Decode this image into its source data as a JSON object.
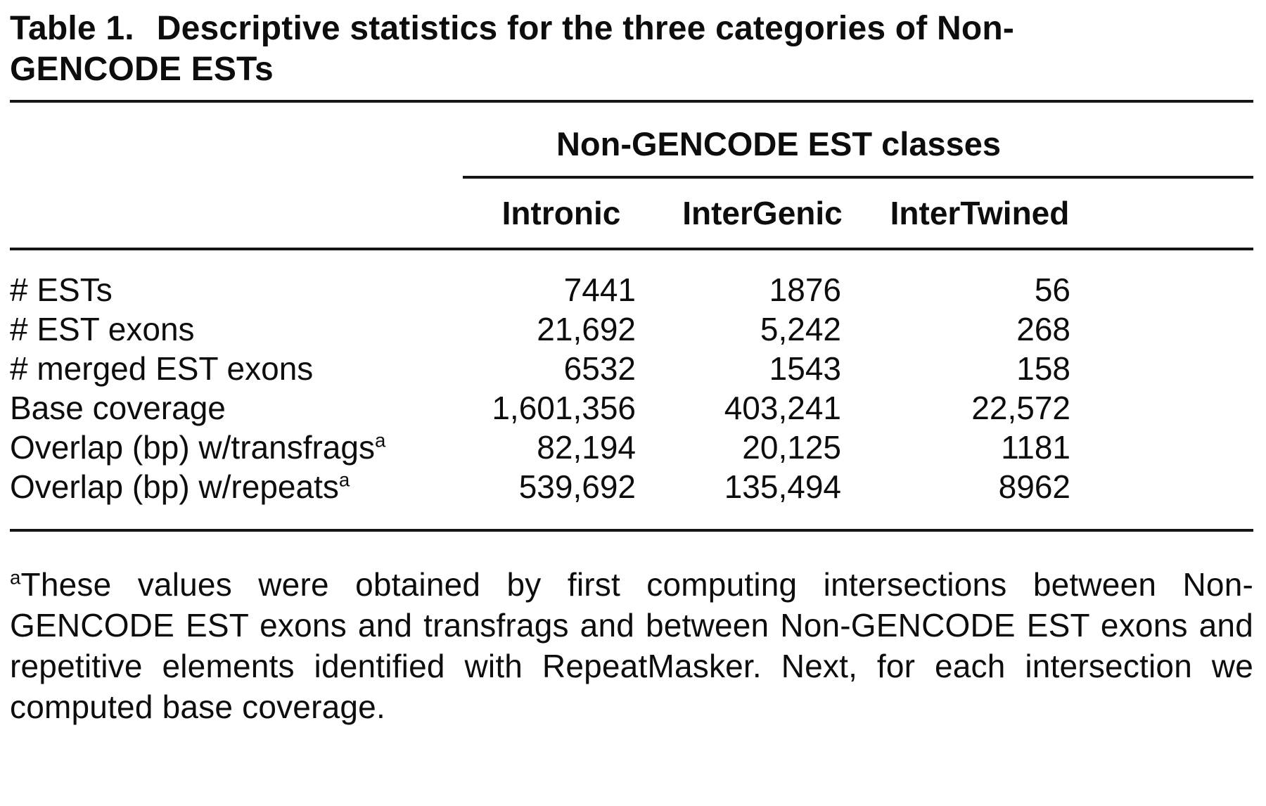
{
  "caption": {
    "number": "Table 1.",
    "text": "Descriptive statistics for the three categories of Non-GENCODE ESTs"
  },
  "table": {
    "spanner": "Non-GENCODE EST classes",
    "columns": [
      "Intronic",
      "InterGenic",
      "InterTwined"
    ],
    "rows": [
      {
        "label": "# ESTs",
        "sup": "",
        "values": [
          "7441",
          "1876",
          "56"
        ]
      },
      {
        "label": "# EST exons",
        "sup": "",
        "values": [
          "21,692",
          "5,242",
          "268"
        ]
      },
      {
        "label": "# merged EST exons",
        "sup": "",
        "values": [
          "6532",
          "1543",
          "158"
        ]
      },
      {
        "label": "Base coverage",
        "sup": "",
        "values": [
          "1,601,356",
          "403,241",
          "22,572"
        ]
      },
      {
        "label": "Overlap (bp) w/transfrags",
        "sup": "a",
        "values": [
          "82,194",
          "20,125",
          "1181"
        ]
      },
      {
        "label": "Overlap (bp) w/repeats",
        "sup": "a",
        "values": [
          "539,692",
          "135,494",
          "8962"
        ]
      }
    ]
  },
  "footnote": {
    "marker": "a",
    "text": "These values were obtained by first computing intersections between Non-GENCODE EST exons and transfrags and between Non-GENCODE EST exons and repetitive elements identified with RepeatMasker. Next, for each intersection we computed base coverage."
  },
  "colors": {
    "text": "#0d0d0d",
    "rule": "#161616",
    "background": "#ffffff"
  }
}
